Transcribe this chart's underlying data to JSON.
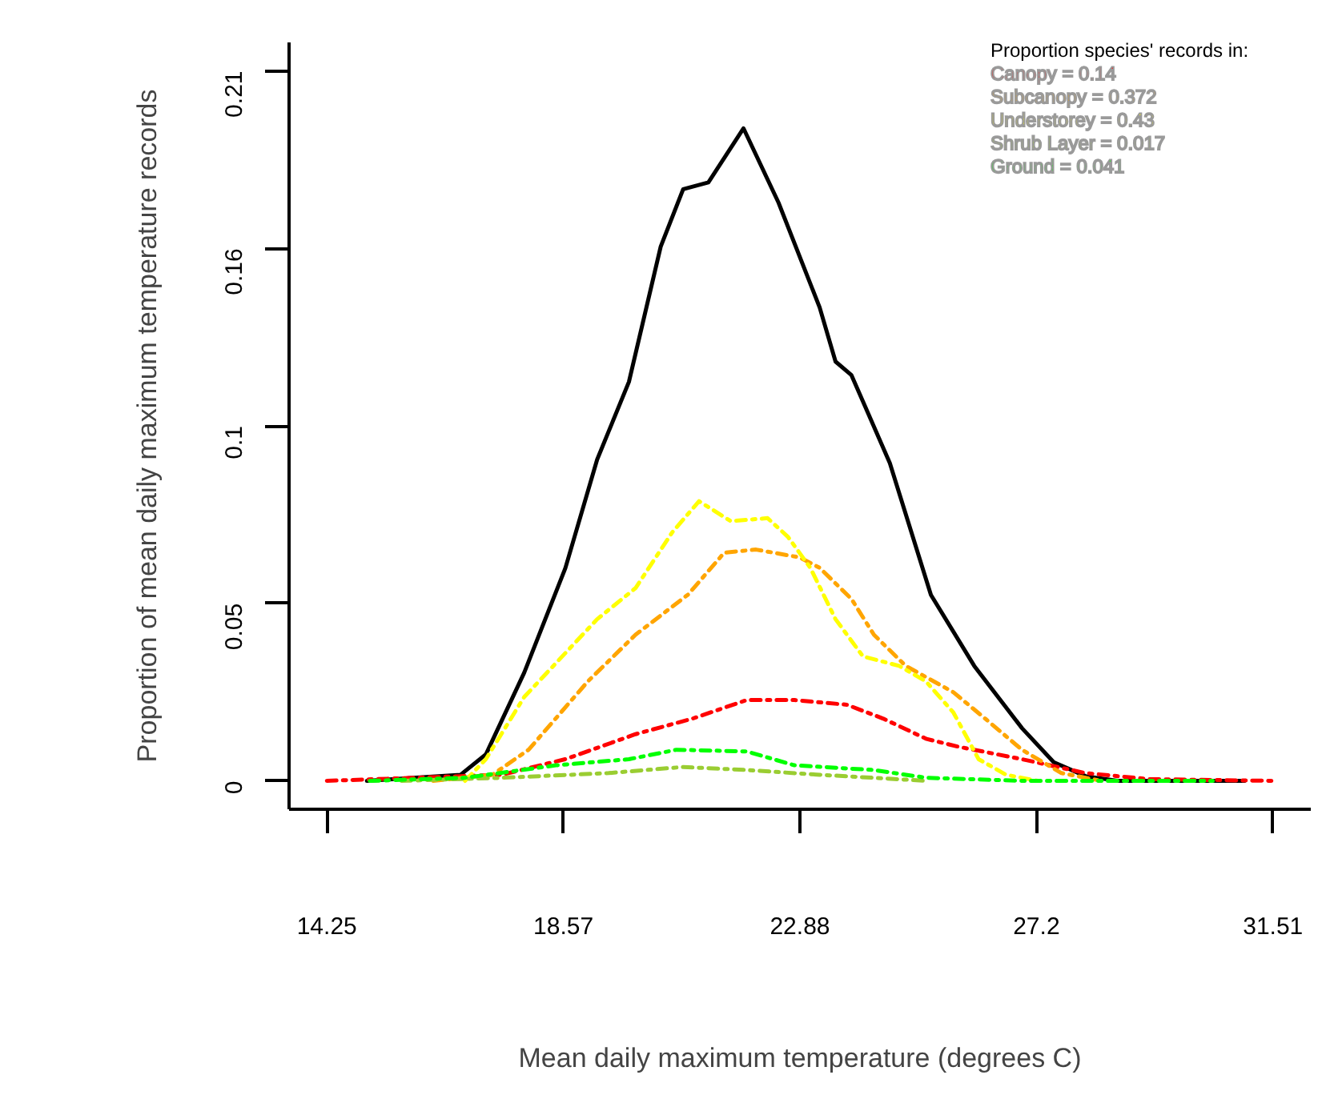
{
  "chart_data": {
    "type": "line",
    "xlabel": "Mean daily maximum temperature (degrees C)",
    "ylabel": "Proportion of mean daily maximum temperature records",
    "legend_title": "Proportion species' records in:",
    "legend": "top right",
    "grid": false,
    "xlim": [
      13.56,
      32.2
    ],
    "ylim": [
      -0.0084,
      0.2184
    ],
    "xticks": [
      14.25,
      {
        "value": 18.565,
        "label": "18.57"
      },
      22.88,
      {
        "value": 27.195,
        "label": "27.2"
      },
      31.51
    ],
    "yticks": [
      0,
      {
        "value": 0.0525,
        "label": "0.05"
      },
      {
        "value": 0.105,
        "label": "0.1"
      },
      {
        "value": 0.1575,
        "label": "0.16"
      },
      0.21
    ],
    "series": [
      {
        "color": "#000000",
        "line_style": "solid",
        "x": [
          14.98,
          16.69,
          17.15,
          17.85,
          18.6,
          19.18,
          19.76,
          20.34,
          20.75,
          21.21,
          21.85,
          22.49,
          23.24,
          23.53,
          23.82,
          24.52,
          25.27,
          26.06,
          26.93,
          27.51,
          28.09,
          28.67,
          30.99
        ],
        "values": [
          0,
          0.0018,
          0.0078,
          0.032,
          0.0629,
          0.095,
          0.118,
          0.158,
          0.175,
          0.177,
          0.193,
          0.171,
          0.14,
          0.124,
          0.12,
          0.094,
          0.055,
          0.034,
          0.0156,
          0.0055,
          0.0014,
          0,
          0
        ]
      },
      {
        "name": "Canopy = 0.14",
        "color": "#ff0000",
        "line_style": "dashdot",
        "x": [
          14.25,
          17.44,
          18.6,
          19.88,
          20.92,
          21.91,
          22.78,
          23.74,
          24.4,
          25.19,
          25.77,
          26.93,
          28.09,
          29.25,
          31.51
        ],
        "values": [
          0,
          0.0018,
          0.0064,
          0.0138,
          0.0184,
          0.0239,
          0.0239,
          0.0225,
          0.0184,
          0.0124,
          0.0101,
          0.0064,
          0.0023,
          0.0005,
          0
        ]
      },
      {
        "name": "Subcanopy = 0.372",
        "color": "#ffa500",
        "line_style": "dashdot",
        "x": [
          16.19,
          17.27,
          17.93,
          19.01,
          19.88,
          20.84,
          21.5,
          22.08,
          22.87,
          23.24,
          23.82,
          24.23,
          24.81,
          25.68,
          26.26,
          26.93,
          27.65,
          28.38
        ],
        "values": [
          0,
          0.0018,
          0.0092,
          0.0294,
          0.0432,
          0.0551,
          0.0675,
          0.0684,
          0.0661,
          0.063,
          0.0538,
          0.0432,
          0.034,
          0.0262,
          0.0184,
          0.0092,
          0.0023,
          0
        ]
      },
      {
        "name": "Understorey = 0.43",
        "color": "#ffff00",
        "line_style": "dashdot",
        "x": [
          16.77,
          17.15,
          17.85,
          19.18,
          19.88,
          20.55,
          21.04,
          21.62,
          22.29,
          22.66,
          23.07,
          23.53,
          24.03,
          24.69,
          25.18,
          25.68,
          26.14,
          26.64,
          27.22
        ],
        "values": [
          0,
          0.0064,
          0.0248,
          0.0478,
          0.057,
          0.0735,
          0.0827,
          0.0768,
          0.0777,
          0.0722,
          0.063,
          0.0478,
          0.0368,
          0.034,
          0.0294,
          0.0202,
          0.0064,
          0.0018,
          0
        ]
      },
      {
        "name": "Shrub Layer = 0.017",
        "color": "#9acd32",
        "line_style": "dashdot",
        "x": [
          15.61,
          17.44,
          19.39,
          20.75,
          21.91,
          23.24,
          25.19
        ],
        "values": [
          0,
          0.0009,
          0.0023,
          0.0041,
          0.0032,
          0.0018,
          0
        ]
      },
      {
        "name": "Ground = 0.041",
        "color": "#00ff00",
        "line_style": "dashdot",
        "x": [
          15.03,
          16.77,
          18.43,
          19.76,
          20.63,
          21.91,
          22.78,
          24.23,
          25.19,
          26.93,
          30.41
        ],
        "values": [
          0,
          0.0009,
          0.0046,
          0.0064,
          0.0092,
          0.0087,
          0.0046,
          0.0032,
          0.0009,
          0,
          0
        ]
      }
    ]
  }
}
